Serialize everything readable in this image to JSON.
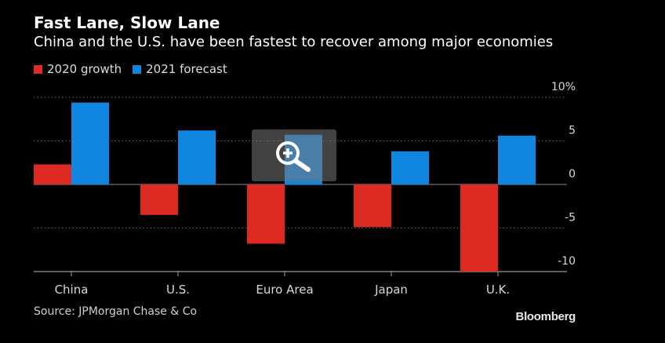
{
  "header": {
    "title": "Fast Lane, Slow Lane",
    "subtitle": "China and the U.S. have been fastest to recover among major economies"
  },
  "legend": {
    "items": [
      {
        "label": "2020 growth",
        "color": "#dd2a23"
      },
      {
        "label": "2021 forecast",
        "color": "#0f86df"
      }
    ]
  },
  "footer": {
    "source": "Source: JPMorgan Chase & Co",
    "brand": "Bloomberg"
  },
  "overlay": {
    "icon": "zoom-in-icon"
  },
  "chart_data": {
    "type": "bar",
    "title": "Fast Lane, Slow Lane",
    "subtitle": "China and the U.S. have been fastest to recover among major economies",
    "categories": [
      "China",
      "U.S.",
      "Euro Area",
      "Japan",
      "U.K."
    ],
    "series": [
      {
        "name": "2020 growth",
        "color": "#dd2a23",
        "values": [
          2.3,
          -3.5,
          -6.8,
          -4.9,
          -10.0
        ]
      },
      {
        "name": "2021 forecast",
        "color": "#0f86df",
        "values": [
          9.4,
          6.2,
          5.7,
          3.8,
          5.6
        ]
      }
    ],
    "ylim": [
      -10,
      10
    ],
    "yticks": [
      10,
      5,
      0,
      -5,
      -10
    ],
    "ytick_labels": [
      "10%",
      "5",
      "0",
      "-5",
      "-10"
    ],
    "xlabel": "",
    "ylabel": "",
    "grid": true,
    "legend_position": "top-left",
    "y_axis_side": "right"
  }
}
